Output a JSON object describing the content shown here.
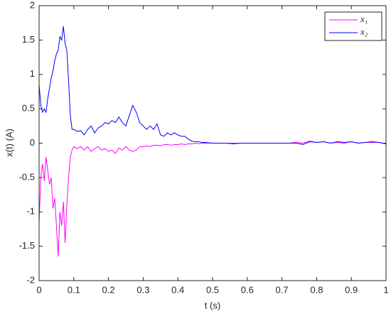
{
  "chart_data": {
    "type": "line",
    "x_label": "t (s)",
    "y_label": "x(t) (A)",
    "x": [
      0,
      0.005,
      0.01,
      0.015,
      0.02,
      0.025,
      0.03,
      0.035,
      0.04,
      0.045,
      0.05,
      0.055,
      0.06,
      0.065,
      0.07,
      0.075,
      0.08,
      0.085,
      0.09,
      0.095,
      0.1,
      0.11,
      0.12,
      0.13,
      0.14,
      0.15,
      0.16,
      0.17,
      0.18,
      0.19,
      0.2,
      0.21,
      0.22,
      0.23,
      0.24,
      0.25,
      0.26,
      0.27,
      0.28,
      0.29,
      0.3,
      0.31,
      0.32,
      0.33,
      0.34,
      0.35,
      0.36,
      0.37,
      0.38,
      0.39,
      0.4,
      0.41,
      0.42,
      0.43,
      0.44,
      0.45,
      0.46,
      0.47,
      0.48,
      0.5,
      0.52,
      0.54,
      0.56,
      0.58,
      0.6,
      0.62,
      0.64,
      0.66,
      0.68,
      0.7,
      0.72,
      0.74,
      0.76,
      0.78,
      0.8,
      0.82,
      0.84,
      0.86,
      0.88,
      0.9,
      0.92,
      0.94,
      0.96,
      0.98,
      1
    ],
    "series": [
      {
        "name": "x₁",
        "color": "#ff00ff",
        "values": [
          -1.15,
          -0.5,
          -0.3,
          -0.55,
          -0.2,
          -0.4,
          -0.6,
          -0.5,
          -0.95,
          -0.8,
          -1.2,
          -1.65,
          -1.0,
          -1.2,
          -0.85,
          -1.45,
          -0.9,
          -0.5,
          -0.2,
          -0.1,
          -0.05,
          -0.08,
          -0.05,
          -0.1,
          -0.05,
          -0.12,
          -0.08,
          -0.05,
          -0.1,
          -0.08,
          -0.12,
          -0.1,
          -0.15,
          -0.07,
          -0.1,
          -0.05,
          -0.1,
          -0.12,
          -0.1,
          -0.05,
          -0.05,
          -0.04,
          -0.05,
          -0.03,
          -0.03,
          -0.04,
          -0.02,
          -0.02,
          -0.03,
          -0.02,
          -0.02,
          -0.01,
          -0.02,
          -0.01,
          -0.01,
          0,
          -0.01,
          0,
          0,
          0,
          0,
          0,
          0,
          0,
          0,
          0,
          0,
          0,
          0,
          0,
          0,
          0.01,
          0,
          0.03,
          0.01,
          0.02,
          0,
          0.01,
          0,
          0.02,
          0,
          0.01,
          0.01,
          0.01,
          -0.01
        ]
      },
      {
        "name": "x₂",
        "color": "#0000ff",
        "values": [
          0.85,
          0.55,
          0.45,
          0.5,
          0.45,
          0.65,
          0.8,
          0.95,
          1.05,
          1.2,
          1.3,
          1.35,
          1.55,
          1.5,
          1.7,
          1.45,
          1.35,
          0.9,
          0.4,
          0.2,
          0.2,
          0.17,
          0.18,
          0.12,
          0.2,
          0.25,
          0.15,
          0.22,
          0.25,
          0.3,
          0.28,
          0.33,
          0.3,
          0.38,
          0.3,
          0.25,
          0.4,
          0.55,
          0.45,
          0.3,
          0.25,
          0.2,
          0.25,
          0.2,
          0.28,
          0.12,
          0.1,
          0.15,
          0.12,
          0.15,
          0.12,
          0.1,
          0.1,
          0.06,
          0.03,
          0.02,
          0.02,
          0.01,
          0.01,
          0,
          0,
          0,
          -0.01,
          0,
          0,
          0,
          0,
          0,
          0,
          0,
          0,
          0,
          -0.02,
          0.02,
          0.01,
          0.02,
          0,
          0.02,
          0.01,
          0.02,
          0,
          0.01,
          0.02,
          0.01,
          -0.01
        ]
      }
    ],
    "xlim": [
      0,
      1
    ],
    "xticks": [
      0,
      0.1,
      0.2,
      0.3,
      0.4,
      0.5,
      0.6,
      0.7,
      0.8,
      0.9,
      1
    ],
    "ylim": [
      -2,
      2
    ],
    "yticks": [
      -2,
      -1.5,
      -1,
      -0.5,
      0,
      0.5,
      1,
      1.5,
      2
    ],
    "legend": "top-right"
  }
}
